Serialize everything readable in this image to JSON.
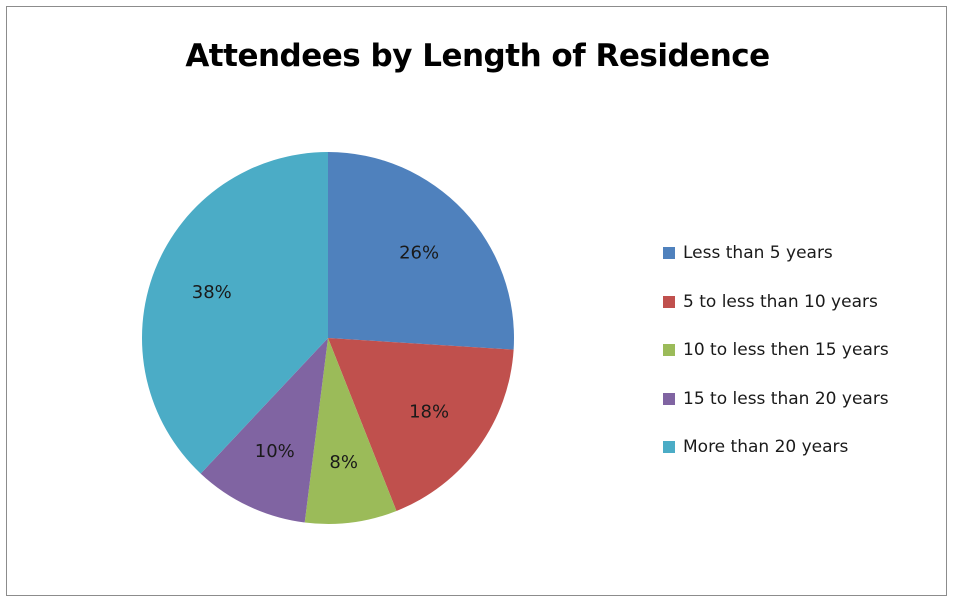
{
  "chart_data": {
    "type": "pie",
    "title": "Attendees by Length of Residence",
    "categories": [
      "Less than 5 years",
      "5 to less than 10 years",
      "10 to less then 15 years",
      "15 to less than 20 years",
      "More than 20 years"
    ],
    "values": [
      26,
      18,
      8,
      10,
      38
    ],
    "value_labels": [
      "26%",
      "18%",
      "8%",
      "10%",
      "38%"
    ],
    "colors": [
      "#4f81bd",
      "#c0504d",
      "#9bbb59",
      "#8064a2",
      "#4bacc6"
    ],
    "legend_position": "right"
  }
}
